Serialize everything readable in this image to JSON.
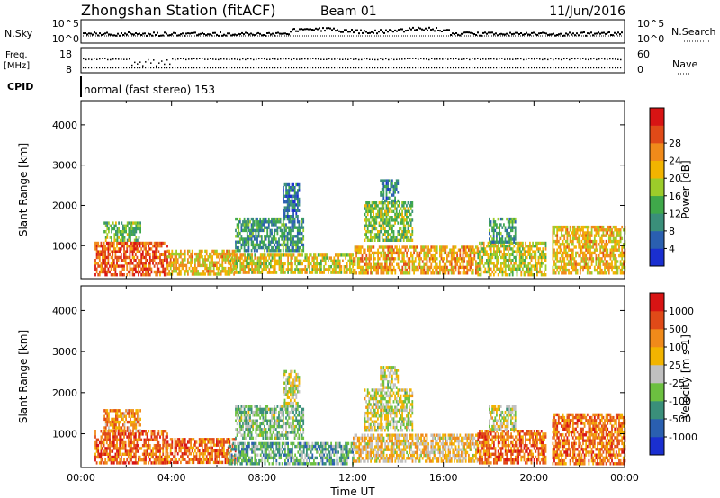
{
  "header": {
    "station": "Zhongshan Station (fitACF)",
    "beam": "Beam 01",
    "date": "11/Jun/2016"
  },
  "status_panels": {
    "nsky_label": "N.Sky",
    "nsearch_label": "N.Search",
    "freq_label_top": "Freq.",
    "freq_label_unit": "[MHz]",
    "nave_label": "Nave",
    "cpid_label": "CPID",
    "cpid_text": "normal (fast stereo) 153",
    "nsky_ticks": [
      "10^5",
      "10^0"
    ],
    "nsearch_ticks": [
      "10^5",
      "10^0"
    ],
    "freq_ticks": [
      "18",
      "8"
    ],
    "nave_ticks": [
      "60",
      "0"
    ]
  },
  "chart_data": [
    {
      "type": "heatmap",
      "title": "",
      "xlabel": "",
      "ylabel": "Slant Range [km]",
      "xlim_hours": [
        0,
        24
      ],
      "ylim": [
        180,
        4600
      ],
      "y_ticks": [
        "1000",
        "2000",
        "3000",
        "4000"
      ],
      "colorbar": {
        "label": "Power [dB]",
        "ticks": [
          "4",
          "8",
          "12",
          "16",
          "20",
          "24",
          "28"
        ],
        "range": [
          0,
          30
        ],
        "colors": [
          "#1a2fd0",
          "#2a5fb0",
          "#3a8f7a",
          "#3fa84a",
          "#9ccc2a",
          "#f2b400",
          "#f08a1a",
          "#e04a18",
          "#d81414"
        ]
      },
      "echo_regions": [
        {
          "t0": 0.6,
          "t1": 3.8,
          "r0": 300,
          "r1": 1100,
          "level": 0.82
        },
        {
          "t0": 1.0,
          "t1": 2.6,
          "r0": 1100,
          "r1": 1600,
          "level": 0.42
        },
        {
          "t0": 3.8,
          "t1": 6.8,
          "r0": 300,
          "r1": 900,
          "level": 0.62
        },
        {
          "t0": 6.8,
          "t1": 9.8,
          "r0": 900,
          "r1": 1700,
          "level": 0.32
        },
        {
          "t0": 8.9,
          "t1": 9.6,
          "r0": 1700,
          "r1": 2550,
          "level": 0.22
        },
        {
          "t0": 6.5,
          "t1": 12.0,
          "r0": 300,
          "r1": 800,
          "level": 0.58
        },
        {
          "t0": 12.5,
          "t1": 14.6,
          "r0": 1100,
          "r1": 2100,
          "level": 0.45
        },
        {
          "t0": 13.2,
          "t1": 14.0,
          "r0": 2100,
          "r1": 2650,
          "level": 0.25
        },
        {
          "t0": 12.0,
          "t1": 17.5,
          "r0": 300,
          "r1": 1000,
          "level": 0.66
        },
        {
          "t0": 17.5,
          "t1": 20.5,
          "r0": 300,
          "r1": 1100,
          "level": 0.55
        },
        {
          "t0": 18.0,
          "t1": 19.2,
          "r0": 1100,
          "r1": 1700,
          "level": 0.32
        },
        {
          "t0": 20.8,
          "t1": 24.0,
          "r0": 300,
          "r1": 1500,
          "level": 0.62
        }
      ]
    },
    {
      "type": "heatmap",
      "title": "",
      "xlabel": "Time UT",
      "ylabel": "Slant Range [km]",
      "xlim_hours": [
        0,
        24
      ],
      "ylim": [
        180,
        4600
      ],
      "x_ticks": [
        "00:00",
        "04:00",
        "08:00",
        "12:00",
        "16:00",
        "20:00",
        "00:00"
      ],
      "y_ticks": [
        "1000",
        "2000",
        "3000",
        "4000"
      ],
      "colorbar": {
        "label": "Velocity [m s-1]",
        "ticks": [
          "1000",
          "500",
          "100",
          "25",
          "-25",
          "-100",
          "-500",
          "-1000"
        ],
        "range": [
          -1000,
          1000
        ],
        "colors": [
          "#1a2fd0",
          "#2a5fb0",
          "#3a8f7a",
          "#6cc040",
          "#c0c0c0",
          "#f2b400",
          "#f08a1a",
          "#e04a18",
          "#d81414"
        ]
      },
      "echo_regions": [
        {
          "t0": 0.6,
          "t1": 3.8,
          "r0": 300,
          "r1": 1100,
          "level": 0.2
        },
        {
          "t0": 1.0,
          "t1": 2.6,
          "r0": 1100,
          "r1": 1600,
          "level": 0.3
        },
        {
          "t0": 3.8,
          "t1": 6.8,
          "r0": 300,
          "r1": 900,
          "level": 0.22
        },
        {
          "t0": 6.8,
          "t1": 9.8,
          "r0": 900,
          "r1": 1700,
          "level": 0.6
        },
        {
          "t0": 8.9,
          "t1": 9.6,
          "r0": 1700,
          "r1": 2550,
          "level": 0.5
        },
        {
          "t0": 6.5,
          "t1": 12.0,
          "r0": 300,
          "r1": 800,
          "level": 0.66
        },
        {
          "t0": 12.5,
          "t1": 14.6,
          "r0": 1100,
          "r1": 2100,
          "level": 0.5
        },
        {
          "t0": 13.2,
          "t1": 14.0,
          "r0": 2100,
          "r1": 2650,
          "level": 0.5
        },
        {
          "t0": 12.0,
          "t1": 17.5,
          "r0": 300,
          "r1": 1000,
          "level": 0.4
        },
        {
          "t0": 17.5,
          "t1": 20.5,
          "r0": 300,
          "r1": 1100,
          "level": 0.22
        },
        {
          "t0": 18.0,
          "t1": 19.2,
          "r0": 1100,
          "r1": 1700,
          "level": 0.5
        },
        {
          "t0": 20.8,
          "t1": 24.0,
          "r0": 300,
          "r1": 1500,
          "level": 0.24
        }
      ]
    }
  ]
}
